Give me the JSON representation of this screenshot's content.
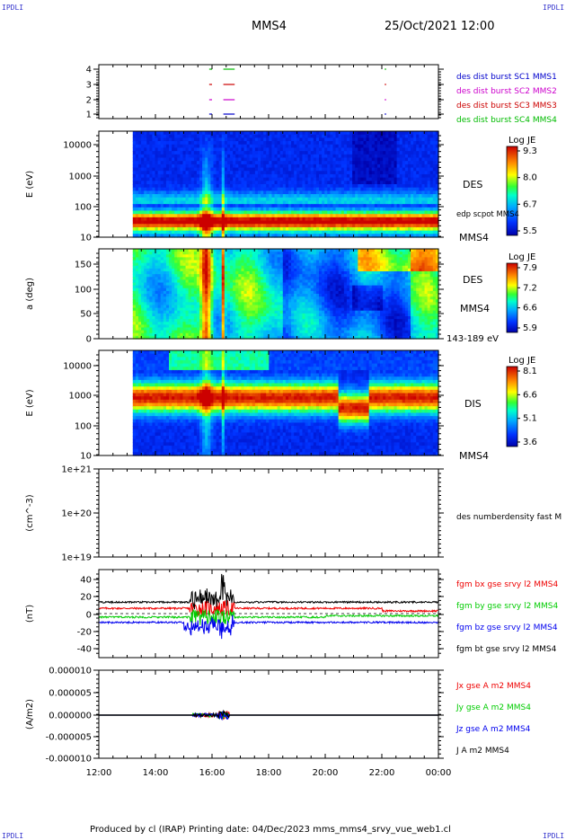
{
  "header": {
    "corner_left": "IPDLI",
    "corner_right": "IPDLI",
    "mission": "MMS4",
    "datetime": "25/Oct/2021 12:00"
  },
  "footer": {
    "text": "Produced by cl (IRAP)   Printing date: 04/Dec/2023   mms_mms4_srvy_vue_web1.cl",
    "corner_left": "IPDLI",
    "corner_right": "IPDLI"
  },
  "time_axis": {
    "ticks": [
      "12:00",
      "14:00",
      "16:00",
      "18:00",
      "20:00",
      "22:00",
      "00:00"
    ],
    "range_hours": [
      12,
      24
    ]
  },
  "chart_data": [
    {
      "id": "burst",
      "type": "scatter",
      "yticks": [
        "4",
        "3",
        "2",
        "1"
      ],
      "ylim": [
        0.5,
        4.5
      ],
      "series": [
        {
          "name": "des dist burst SC1 MMS1",
          "color": "#0000cc",
          "y": 1,
          "x_ranges": [
            [
              15.9,
              16.0
            ],
            [
              16.4,
              16.8
            ]
          ]
        },
        {
          "name": "des dist burst SC2 MMS2",
          "color": "#cc00cc",
          "y": 2,
          "x_ranges": [
            [
              15.9,
              16.0
            ],
            [
              16.4,
              16.8
            ]
          ]
        },
        {
          "name": "des dist burst SC3 MMS3",
          "color": "#cc0000",
          "y": 3,
          "x_ranges": [
            [
              15.9,
              16.0
            ],
            [
              16.4,
              16.8
            ]
          ]
        },
        {
          "name": "des dist burst SC4 MMS4",
          "color": "#00bb00",
          "y": 4,
          "x_ranges": [
            [
              15.9,
              16.0
            ],
            [
              16.4,
              16.8
            ]
          ]
        }
      ]
    },
    {
      "id": "des-energy",
      "type": "heatmap",
      "ylabel": "E (eV)",
      "yticks": [
        "10000",
        "1000",
        "100",
        "10"
      ],
      "ylim": [
        10,
        30000
      ],
      "yscale": "log",
      "data_start_hour": 13.2,
      "colorbar": {
        "title": "Log JE",
        "ticks": [
          "9.3",
          "8.0",
          "6.7",
          "5.5"
        ]
      },
      "label": "DES",
      "label2": "edp scpot MMS4",
      "label3": "MMS4"
    },
    {
      "id": "des-pitch",
      "type": "heatmap",
      "ylabel": "a (deg)",
      "yticks": [
        "150",
        "100",
        "50",
        "0"
      ],
      "ylim": [
        0,
        180
      ],
      "data_start_hour": 13.2,
      "colorbar": {
        "title": "Log JE",
        "ticks": [
          "7.9",
          "7.2",
          "6.6",
          "5.9"
        ]
      },
      "label": "DES",
      "label2": "MMS4",
      "label3": "143-189 eV"
    },
    {
      "id": "dis-energy",
      "type": "heatmap",
      "ylabel": "E (eV)",
      "yticks": [
        "10000",
        "1000",
        "100",
        "10"
      ],
      "ylim": [
        10,
        30000
      ],
      "yscale": "log",
      "data_start_hour": 13.2,
      "colorbar": {
        "title": "Log JE",
        "ticks": [
          "8.1",
          "6.6",
          "5.1",
          "3.6"
        ]
      },
      "label": "DIS",
      "label2": "MMS4"
    },
    {
      "id": "density",
      "type": "line",
      "ylabel": "(cm^-3)",
      "yticks": [
        "1e+21",
        "1e+20",
        "1e+19"
      ],
      "ylim": [
        1e+19,
        1e+21
      ],
      "yscale": "log",
      "series": [
        {
          "name": "des numberdensity fast M",
          "values": []
        }
      ]
    },
    {
      "id": "fgm",
      "type": "line",
      "ylabel": "(nT)",
      "yticks": [
        "40",
        "20",
        "0",
        "-20",
        "-40"
      ],
      "ylim": [
        -50,
        50
      ],
      "series": [
        {
          "name": "fgm bx gse srvy l2 MMS4",
          "color": "#ee0000",
          "base": 6
        },
        {
          "name": "fgm by gse srvy l2 MMS4",
          "color": "#00cc00",
          "base": -4
        },
        {
          "name": "fgm bz gse srvy l2 MMS4",
          "color": "#0000ee",
          "base": -10
        },
        {
          "name": "fgm bt gse srvy l2 MMS4",
          "color": "#000000",
          "base": 13
        }
      ]
    },
    {
      "id": "current",
      "type": "line",
      "ylabel": "(A/m2)",
      "yticks": [
        "0.000010",
        "0.000005",
        "0.000000",
        "-0.000005",
        "-0.000010"
      ],
      "ylim": [
        -1e-05,
        1e-05
      ],
      "series": [
        {
          "name": "Jx gse A m2 MMS4",
          "color": "#ee0000"
        },
        {
          "name": "Jy gse A m2 MMS4",
          "color": "#00cc00"
        },
        {
          "name": "Jz gse A m2 MMS4",
          "color": "#0000ee"
        },
        {
          "name": "J A m2 MMS4",
          "color": "#000000"
        }
      ]
    }
  ]
}
